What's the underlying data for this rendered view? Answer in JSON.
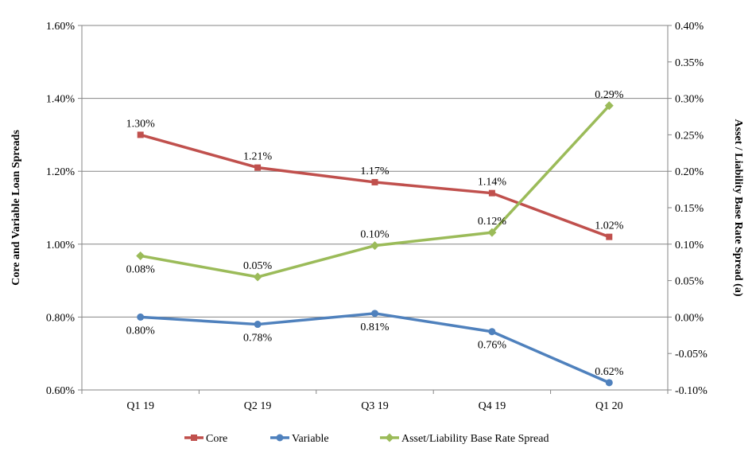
{
  "chart_data": {
    "type": "line",
    "categories": [
      "Q1 19",
      "Q2 19",
      "Q3 19",
      "Q4 19",
      "Q1 20"
    ],
    "ylabel_left": "Core and Variable Loan Spreads",
    "ylabel_right": "Asset / Liability Base Rate Spread (a)",
    "left_axis": {
      "ylim": [
        0.6,
        1.6
      ],
      "ticks": [
        0.6,
        0.8,
        1.0,
        1.2,
        1.4,
        1.6
      ],
      "tick_labels": [
        "0.60%",
        "0.80%",
        "1.00%",
        "1.20%",
        "1.40%",
        "1.60%"
      ]
    },
    "right_axis": {
      "ylim": [
        -0.1,
        0.4
      ],
      "ticks": [
        -0.1,
        -0.05,
        0.0,
        0.05,
        0.1,
        0.15,
        0.2,
        0.25,
        0.3,
        0.35,
        0.4
      ],
      "tick_labels": [
        "-0.10%",
        "-0.05%",
        "0.00%",
        "0.05%",
        "0.10%",
        "0.15%",
        "0.20%",
        "0.25%",
        "0.30%",
        "0.35%",
        "0.40%"
      ]
    },
    "grid": true,
    "legend_position": "bottom",
    "series": [
      {
        "name": "Core",
        "axis": "left",
        "color": "#c0504d",
        "marker": "square",
        "values": [
          1.3,
          1.21,
          1.17,
          1.14,
          1.02
        ],
        "labels": [
          "1.30%",
          "1.21%",
          "1.17%",
          "1.14%",
          "1.02%"
        ],
        "label_pos": [
          "above",
          "above",
          "above",
          "above",
          "above"
        ]
      },
      {
        "name": "Variable",
        "axis": "left",
        "color": "#4f81bd",
        "marker": "circle",
        "values": [
          0.8,
          0.78,
          0.81,
          0.76,
          0.62
        ],
        "labels": [
          "0.80%",
          "0.78%",
          "0.81%",
          "0.76%",
          "0.62%"
        ],
        "label_pos": [
          "below",
          "below",
          "below",
          "below",
          "above"
        ]
      },
      {
        "name": "Asset/Liability Base Rate Spread",
        "axis": "right",
        "color": "#9bbb59",
        "marker": "diamond",
        "values": [
          0.084,
          0.055,
          0.098,
          0.116,
          0.29
        ],
        "labels": [
          "0.08%",
          "0.05%",
          "0.10%",
          "0.12%",
          "0.29%"
        ],
        "label_pos": [
          "below",
          "above",
          "above",
          "above",
          "above"
        ]
      }
    ]
  }
}
